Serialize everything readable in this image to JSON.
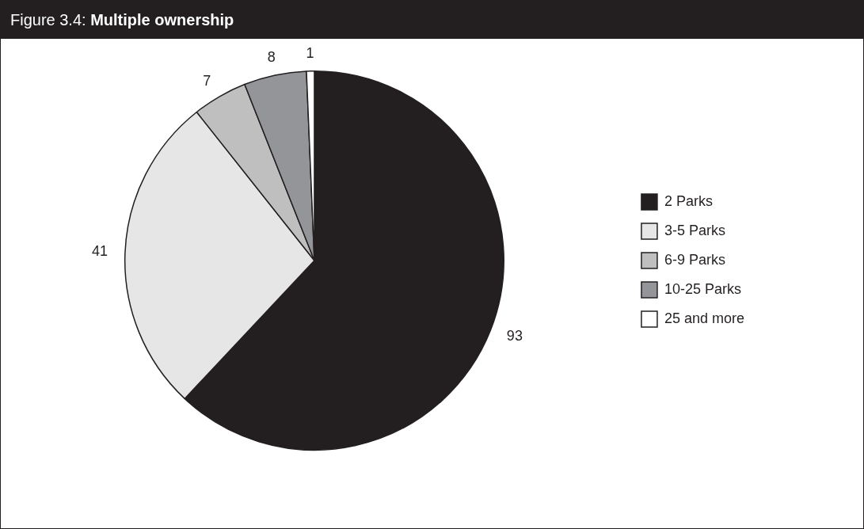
{
  "chart_data": {
    "type": "pie",
    "title": "Figure 3.4: Multiple ownership",
    "categories": [
      "2 Parks",
      "3-5 Parks",
      "6-9 Parks",
      "10-25 Parks",
      "25 and more"
    ],
    "values": [
      93,
      41,
      7,
      8,
      1
    ],
    "colors": [
      "#231f20",
      "#e6e6e6",
      "#bfbfbf",
      "#939598",
      "#ffffff"
    ],
    "legend": "right",
    "data_labels": true
  }
}
